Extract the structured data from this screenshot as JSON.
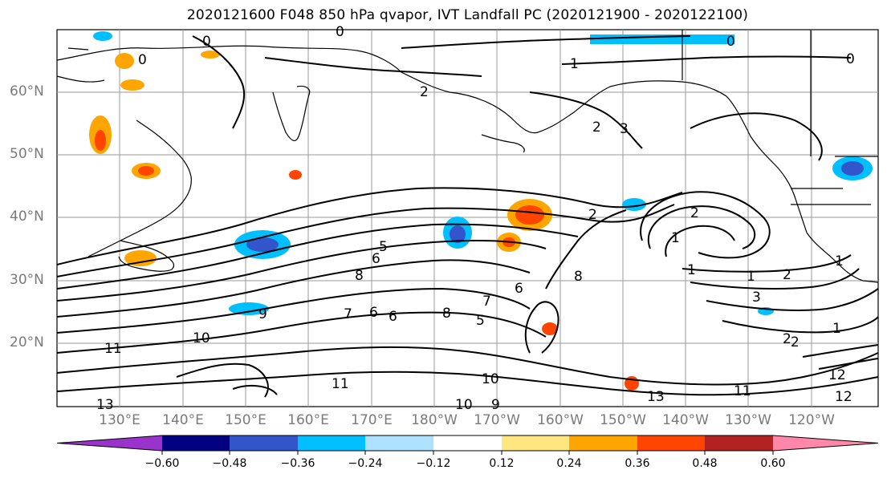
{
  "title": "2020121600 F048 850 hPa qvapor, IVT Landfall PC (2020121900 - 2020122100)",
  "lat_labels": [
    "60°N",
    "50°N",
    "40°N",
    "30°N",
    "20°N"
  ],
  "lon_labels": [
    "130°E",
    "140°E",
    "150°E",
    "160°E",
    "170°E",
    "180°W",
    "170°W",
    "160°W",
    "150°W",
    "140°W",
    "130°W",
    "120°W"
  ],
  "colorbar": {
    "colors": [
      "#9933cc",
      "#000080",
      "#3355cc",
      "#00bfff",
      "#aee0ff",
      "#ffffff",
      "#ffe680",
      "#ffa500",
      "#ff4500",
      "#b22222",
      "#ff88aa"
    ],
    "tick_labels": [
      "−0.60",
      "−0.48",
      "−0.36",
      "−0.24",
      "−0.12",
      "0.12",
      "0.24",
      "0.36",
      "0.48",
      "0.60"
    ]
  },
  "contour_labels": [
    "0",
    "0",
    "0",
    "0",
    "0",
    "1",
    "2",
    "2",
    "3",
    "2",
    "2",
    "5",
    "6",
    "8",
    "9",
    "7",
    "6",
    "6",
    "8",
    "7",
    "6",
    "5",
    "8",
    "1",
    "1",
    "1",
    "2",
    "3",
    "1",
    "2",
    "1",
    "10",
    "11",
    "10",
    "9",
    "10",
    "11",
    "11",
    "13",
    "12",
    "12",
    "13",
    "2"
  ],
  "colors": {
    "land": "#000000",
    "contour": "#000000",
    "grid": "#9a9a9a",
    "tick_label": "#7a7a7a"
  }
}
